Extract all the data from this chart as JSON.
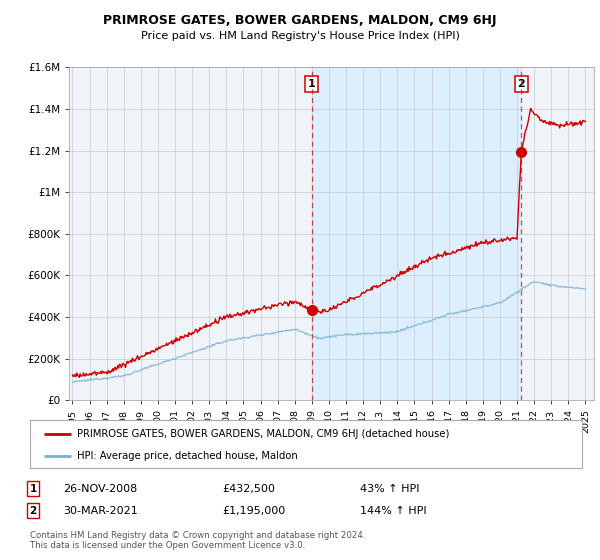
{
  "title": "PRIMROSE GATES, BOWER GARDENS, MALDON, CM9 6HJ",
  "subtitle": "Price paid vs. HM Land Registry's House Price Index (HPI)",
  "ylim": [
    0,
    1600000
  ],
  "yticks": [
    0,
    200000,
    400000,
    600000,
    800000,
    1000000,
    1200000,
    1400000,
    1600000
  ],
  "ytick_labels": [
    "£0",
    "£200K",
    "£400K",
    "£600K",
    "£800K",
    "£1M",
    "£1.2M",
    "£1.4M",
    "£1.6M"
  ],
  "x_start_year": 1995,
  "x_end_year": 2025,
  "red_line_color": "#cc0000",
  "blue_line_color": "#7bafd4",
  "shade_color": "#ddeeff",
  "marker1_x": 2009.0,
  "marker1_value": 432500,
  "marker1_label": "1",
  "marker1_text": "26-NOV-2008",
  "marker1_price": "£432,500",
  "marker1_hpi": "43% ↑ HPI",
  "marker2_x": 2021.25,
  "marker2_value": 1195000,
  "marker2_label": "2",
  "marker2_text": "30-MAR-2021",
  "marker2_price": "£1,195,000",
  "marker2_hpi": "144% ↑ HPI",
  "legend_line1": "PRIMROSE GATES, BOWER GARDENS, MALDON, CM9 6HJ (detached house)",
  "legend_line2": "HPI: Average price, detached house, Maldon",
  "footer": "Contains HM Land Registry data © Crown copyright and database right 2024.\nThis data is licensed under the Open Government Licence v3.0.",
  "bg_color": "#ffffff",
  "grid_color": "#c8d0d8",
  "chart_bg": "#f0f4f8"
}
